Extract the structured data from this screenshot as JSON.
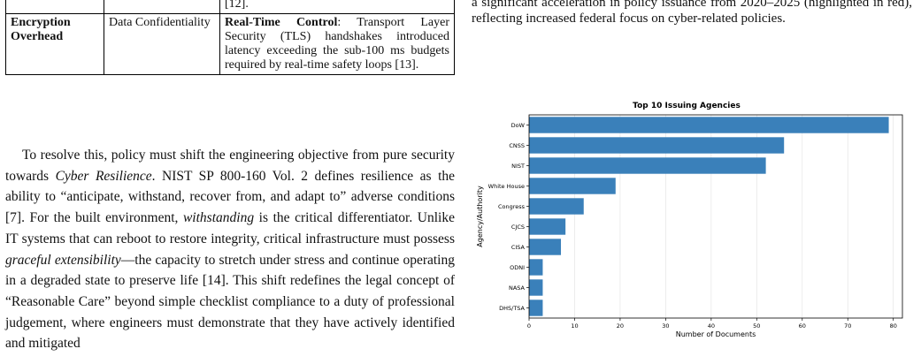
{
  "table": {
    "top_row": {
      "col1": "",
      "col2": "",
      "col3": "[12]."
    },
    "rows": [
      {
        "threat": "Encryption Overhead",
        "property": "Data Confidentiality",
        "impact_title": "Real-Time Control",
        "impact_text": ": Transport Layer Security (TLS) handshakes introduced latency exceeding the sub-100 ms budgets required by real-time safety loops [13]."
      }
    ]
  },
  "body": {
    "t1": "To resolve this, policy must shift the engineering objective from pure security towards ",
    "e1": "Cyber Resilience",
    "t2": ". NIST SP 800-160 Vol. 2 defines resilience as the ability to “anticipate, withstand, recover from, and adapt to” adverse conditions [7]. For the built environment, ",
    "e2": "withstanding",
    "t3": " is the critical differentiator. Unlike IT systems that can reboot to restore integrity, critical infrastructure must possess ",
    "e3": "graceful extensibility",
    "t4": "—the capacity to stretch under stress and continue operating in a degraded state to preserve life [14]. This shift redefines the legal concept of “Reasonable Care” beyond simple checklist compliance to a duty of professional judgement, where engineers must demonstrate that they have actively identified and mitigated"
  },
  "caption": {
    "text": "a significant acceleration in policy issuance from 2020–2025 (highlighted in red), reflecting increased federal focus on cyber-related policies."
  },
  "chart_data": {
    "type": "bar",
    "orientation": "horizontal",
    "title": "Top 10 Issuing Agencies",
    "xlabel": "Number of Documents",
    "ylabel": "Agency/Authority",
    "categories": [
      "DoW",
      "CNSS",
      "NIST",
      "White House",
      "Congress",
      "CJCS",
      "CISA",
      "ODNI",
      "NASA",
      "DHS/TSA"
    ],
    "values": [
      79,
      56,
      52,
      19,
      12,
      8,
      7,
      3,
      3,
      3
    ],
    "xlim": [
      0,
      82
    ],
    "xticks": [
      0,
      10,
      20,
      30,
      40,
      50,
      60,
      70,
      80
    ],
    "grid": "vertical",
    "bar_color": "#3a80ba"
  }
}
